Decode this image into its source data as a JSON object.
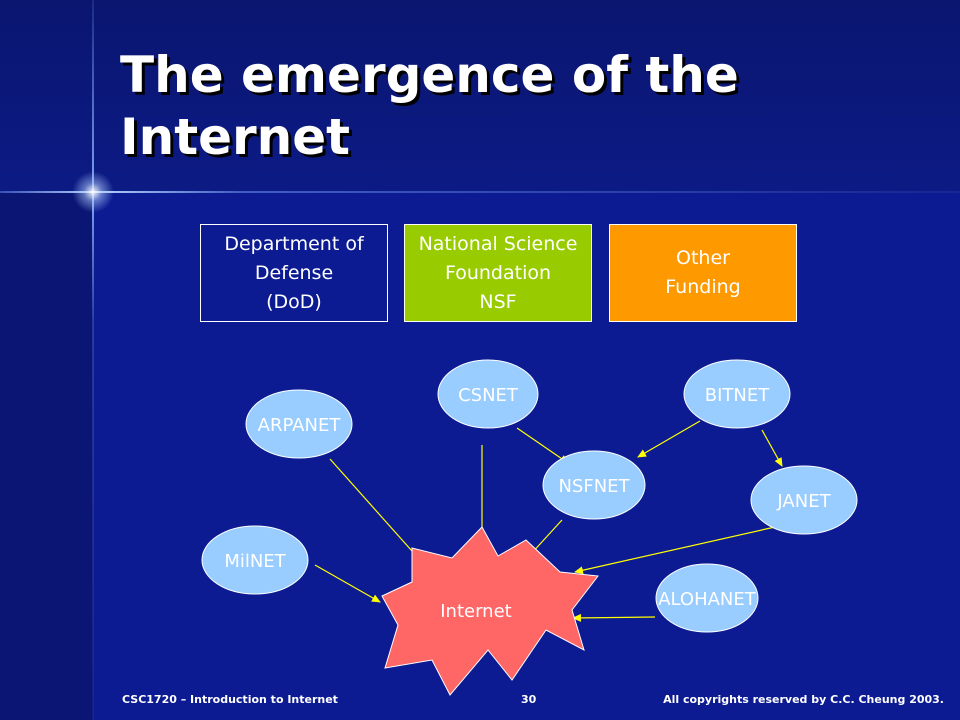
{
  "slide": {
    "title": "The emergence of the Internet"
  },
  "funding": {
    "dod": "Department of\nDefense\n(DoD)",
    "nsf": "National Science\nFoundation\nNSF",
    "other": "Other\nFunding"
  },
  "networks": {
    "csnet": "CSNET",
    "bitnet": "BITNET",
    "arpanet": "ARPANET",
    "nsfnet": "NSFNET",
    "janet": "JANET",
    "milnet": "MilNET",
    "alohanet": "ALOHANET",
    "internet": "Internet"
  },
  "colors": {
    "background": "#0d1b93",
    "node_fill": "#99ccff",
    "internet_fill": "#ff6666",
    "nsf_fill": "#99cc00",
    "other_fill": "#ff9900",
    "arrow": "#ffff00"
  },
  "footer": {
    "course": "CSC1720 – Introduction  to  Internet",
    "page": "30",
    "copyright": "All copyrights  reserved by C.C.  Cheung  2003."
  }
}
